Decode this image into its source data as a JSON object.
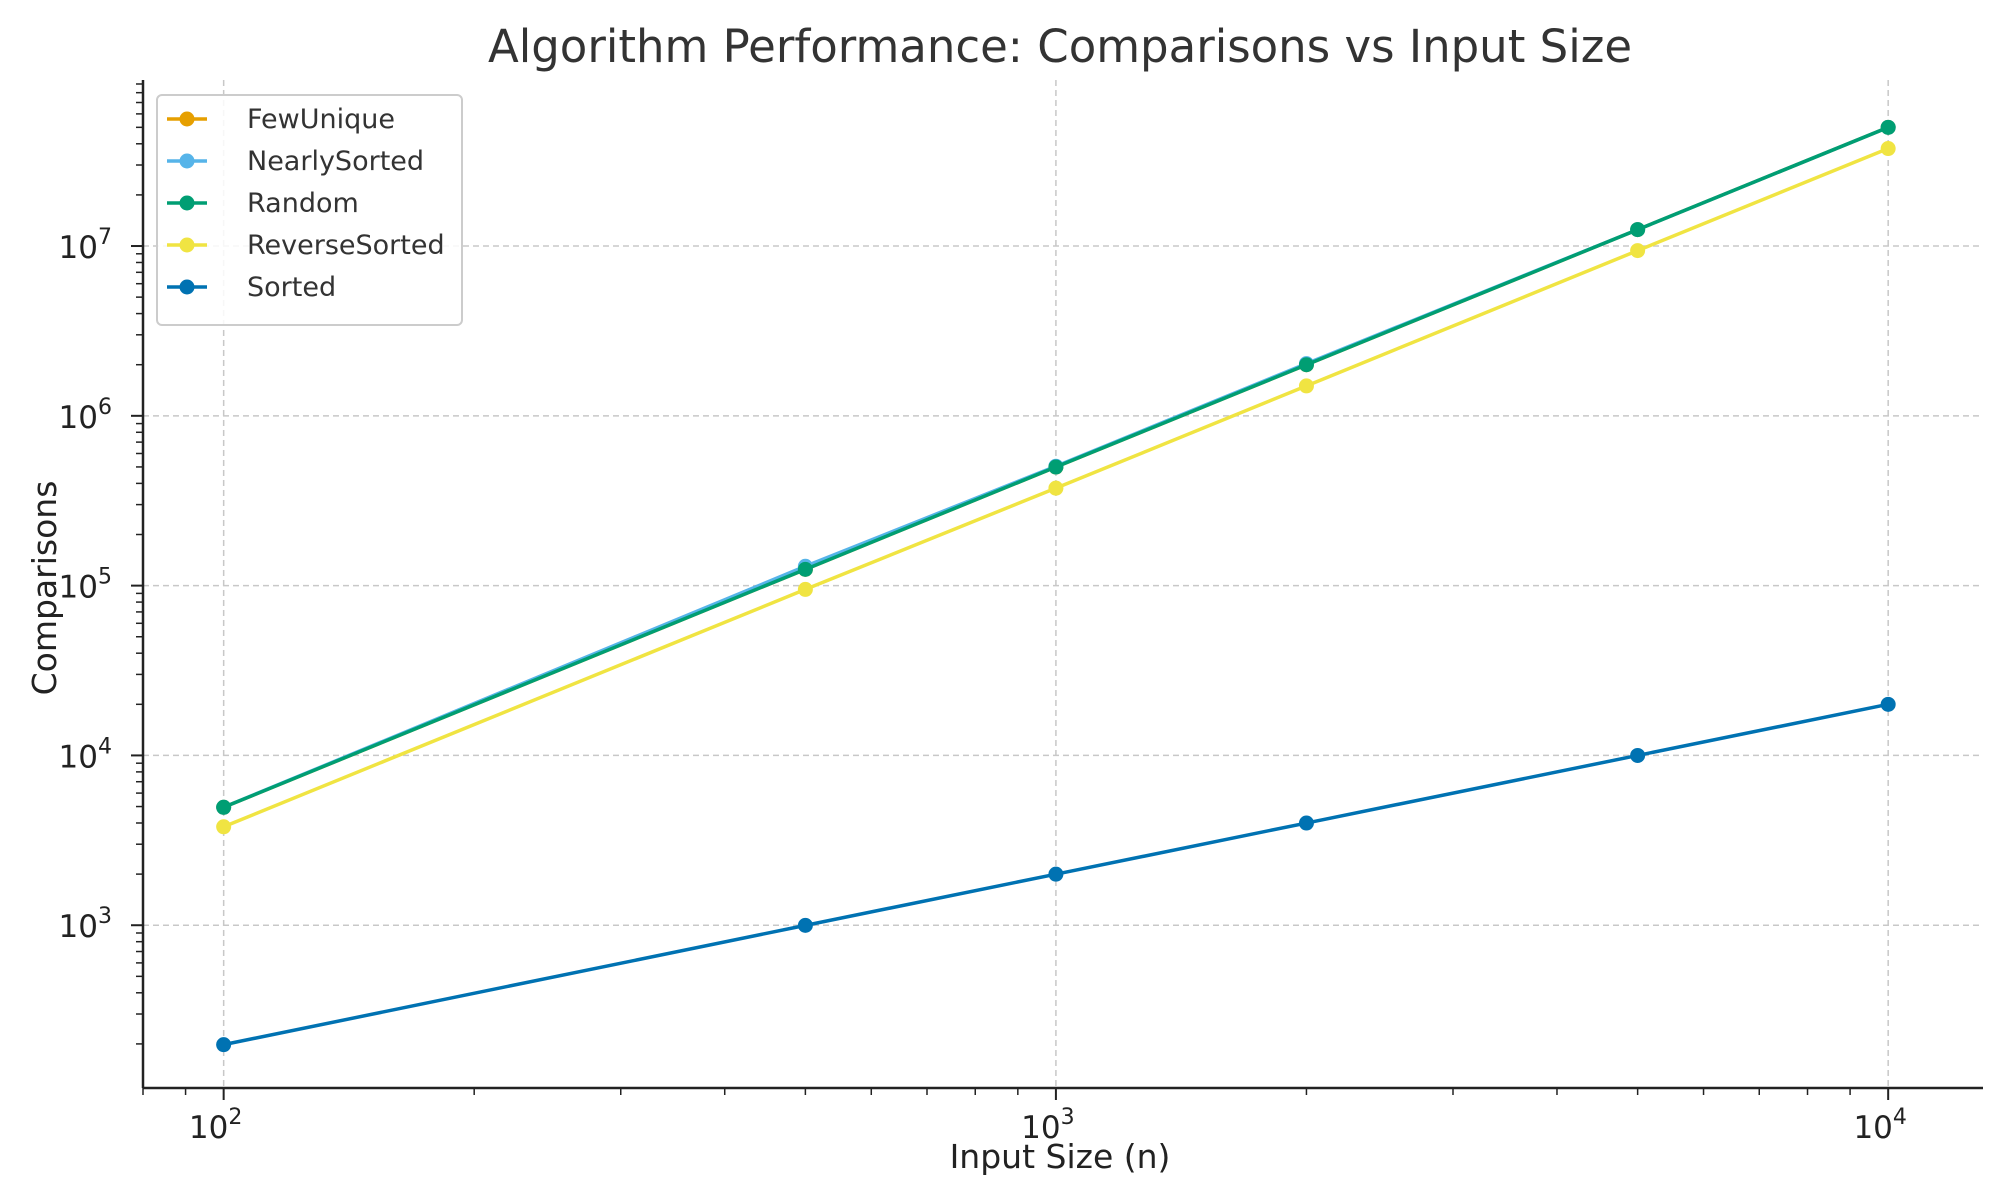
{
  "chart_data": {
    "type": "line",
    "title": "Algorithm Performance: Comparisons vs Input Size",
    "xlabel": "Input Size (n)",
    "ylabel": "Comparisons",
    "xscale": "log",
    "yscale": "log",
    "xlim": [
      80,
      13000
    ],
    "ylim": [
      110,
      95000000
    ],
    "grid": true,
    "legend_position": "top-left",
    "x": [
      100,
      500,
      1000,
      2000,
      5000,
      10000
    ],
    "x_ticks": [
      {
        "value": 100,
        "base": "10",
        "exp": "2"
      },
      {
        "value": 1000,
        "base": "10",
        "exp": "3"
      },
      {
        "value": 10000,
        "base": "10",
        "exp": "4"
      }
    ],
    "y_ticks": [
      {
        "value": 1000,
        "base": "10",
        "exp": "3"
      },
      {
        "value": 10000,
        "base": "10",
        "exp": "4"
      },
      {
        "value": 100000,
        "base": "10",
        "exp": "5"
      },
      {
        "value": 1000000,
        "base": "10",
        "exp": "6"
      },
      {
        "value": 10000000,
        "base": "10",
        "exp": "7"
      }
    ],
    "series": [
      {
        "name": "FewUnique",
        "color": "#E69F00",
        "values": [
          4950,
          124750,
          499500,
          1999000,
          12497500,
          49995000
        ]
      },
      {
        "name": "NearlySorted",
        "color": "#56B4E9",
        "values": [
          4950,
          130000,
          505000,
          2030000,
          12497500,
          49995000
        ]
      },
      {
        "name": "Random",
        "color": "#009E73",
        "values": [
          4950,
          124750,
          499500,
          1999000,
          12497500,
          49995000
        ]
      },
      {
        "name": "ReverseSorted",
        "color": "#F0E442",
        "values": [
          3800,
          95000,
          375000,
          1500000,
          9400000,
          37500000
        ]
      },
      {
        "name": "Sorted",
        "color": "#0072B2",
        "values": [
          198,
          998,
          1998,
          3998,
          9998,
          19998
        ]
      }
    ]
  }
}
